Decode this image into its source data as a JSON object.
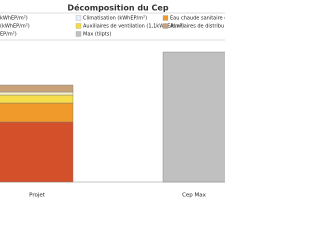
{
  "chart_data": {
    "type": "stacked-bar",
    "title": "Décomposition du Cep",
    "categories": [
      "Projet",
      "Cep Max"
    ],
    "series": [
      {
        "name": "kWhEP/m²)",
        "color": "#d4502a",
        "values": [
          60,
          null
        ]
      },
      {
        "name": "Eau chaude sanitaire (",
        "color": "#ef9a2a",
        "values": [
          19,
          null
        ]
      },
      {
        "name": "Auxiliaires de ventilation (1,1kWhEP/m²)",
        "color": "#f4dc4a",
        "values": [
          8,
          null
        ]
      },
      {
        "name": "(kWhEP/m²)",
        "color": "#f6eec4",
        "values": [
          3,
          null
        ]
      },
      {
        "name": "Auxiliaires de distribu",
        "color": "#c9a27a",
        "values": [
          7,
          null
        ]
      },
      {
        "name": "Climatisation (kWhEP/m²)",
        "color": "#e8f0f8",
        "values": [
          0,
          null
        ]
      },
      {
        "name": "EP/m²)",
        "color": "#8a6a4a",
        "values": [
          0,
          null
        ]
      },
      {
        "name": "Max (tilpts)",
        "color": "#c0c0c0",
        "values": [
          null,
          130
        ]
      }
    ],
    "ylim": [
      0,
      142
    ]
  }
}
